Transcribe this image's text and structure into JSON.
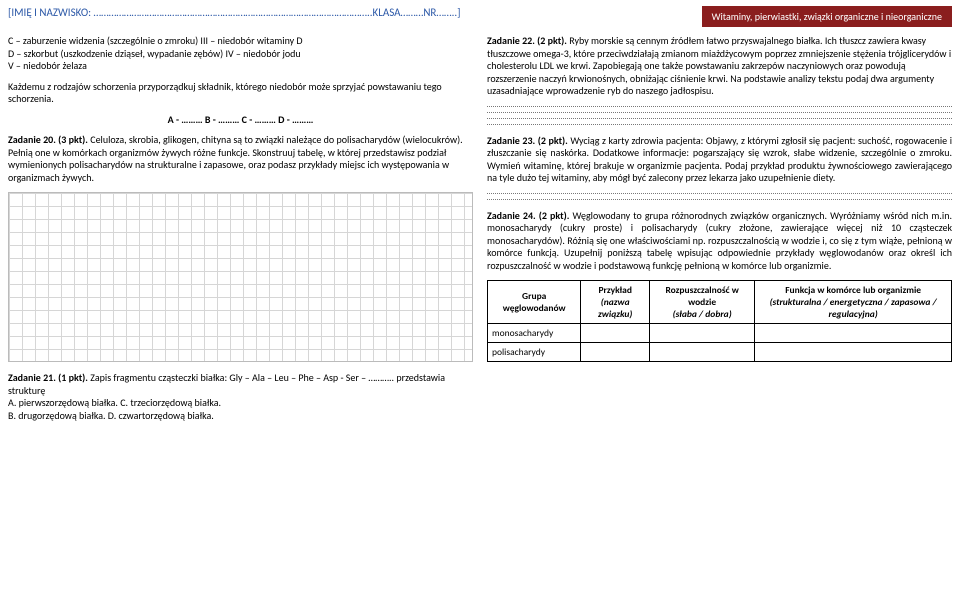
{
  "header": {
    "left": "[IMIĘ I NAZWISKO: ………………………………………………………………………………………………..KLASA………NR……..]",
    "right": "Witaminy, pierwiastki, związki organiczne i nieorganiczne"
  },
  "left": {
    "intro1": "C – zaburzenie widzenia (szczególnie o zmroku) III – niedobór witaminy D",
    "intro2": "D – szkorbut (uszkodzenie dziąseł, wypadanie zębów) IV – niedobór jodu",
    "intro3": "V – niedobór żelaza",
    "intro4": "Każdemu z rodzajów schorzenia przyporządkuj składnik, którego niedobór może sprzyjać powstawaniu tego schorzenia.",
    "abcd": "A - ……… B - ……… C - ……… D - ………",
    "z20_label": "Zadanie 20. (3 pkt).",
    "z20_text": " Celuloza, skrobia, glikogen, chityna są to związki należące do polisacharydów (wielocukrów). Pełnią one w komórkach organizmów żywych różne funkcje. Skonstruuj tabelę, w której przedstawisz podział wymienionych polisacharydów na strukturalne i zapasowe, oraz podasz przykłady miejsc ich występowania w organizmach żywych.",
    "z21_label": "Zadanie 21. (1 pkt).",
    "z21_text": " Zapis fragmentu cząsteczki białka: Gly – Ala – Leu – Phe – Asp - Ser – ……….. przedstawia strukturę",
    "z21_a": "A. pierwszorzędową białka. C. trzeciorzędową białka.",
    "z21_b": "B. drugorzędową białka. D. czwartorzędową białka."
  },
  "right": {
    "z22_label": "Zadanie 22. (2 pkt).",
    "z22_text": " Ryby morskie są cennym źródłem łatwo przyswajalnego białka. Ich tłuszcz zawiera kwasy tłuszczowe omega-3, które przeciwdziałają zmianom miażdżycowym poprzez zmniejszenie stężenia trójglicerydów i cholesterolu LDL we krwi. Zapobiegają one także powstawaniu zakrzepów naczyniowych oraz powodują rozszerzenie naczyń krwionośnych, obniżając ciśnienie krwi. Na podstawie analizy tekstu podaj dwa argumenty uzasadniające wprowadzenie ryb do naszego jadłospisu.",
    "z23_label": "Zadanie 23. (2 pkt).",
    "z23_text": "  Wyciąg z karty zdrowia pacjenta: Objawy, z którymi zgłosił się pacjent: suchość, rogowacenie i złuszczanie się naskórka.  Dodatkowe informacje: pogarszający się wzrok, słabe widzenie, szczególnie o zmroku.  Wymień witaminę, której brakuje w organizmie pacjenta. Podaj przykład produktu żywnościowego zawierającego na tyle dużo tej witaminy, aby mógł być zalecony przez lekarza jako uzupełnienie diety.",
    "z24_label": "Zadanie 24. (2 pkt).",
    "z24_text": " Węglowodany to grupa różnorodnych związków organicznych. Wyróżniamy wśród nich m.in. monosacharydy (cukry proste) i polisacharydy (cukry złożone, zawierające więcej niż 10 cząsteczek monosacharydów). Różnią się one właściwościami np. rozpuszczalnością w wodzie i, co się z tym wiąże, pełnioną w komórce funkcją. Uzupełnij poniższą tabelę wpisując odpowiednie przykłady węglowodanów oraz określ ich rozpuszczalność w wodzie i podstawową funkcję pełnioną w komórce lub organizmie.",
    "table": {
      "h1": "Grupa węglowodanów",
      "h2_line1": "Przykład",
      "h2_line2": "(nazwa związku)",
      "h3_line1": "Rozpuszczalność w wodzie",
      "h3_line2": "(słaba / dobra)",
      "h4_line1": "Funkcja w komórce lub organizmie",
      "h4_line2": "(strukturalna / energetyczna / zapasowa / regulacyjna)",
      "r1": "monosacharydy",
      "r2": "polisacharydy"
    }
  }
}
